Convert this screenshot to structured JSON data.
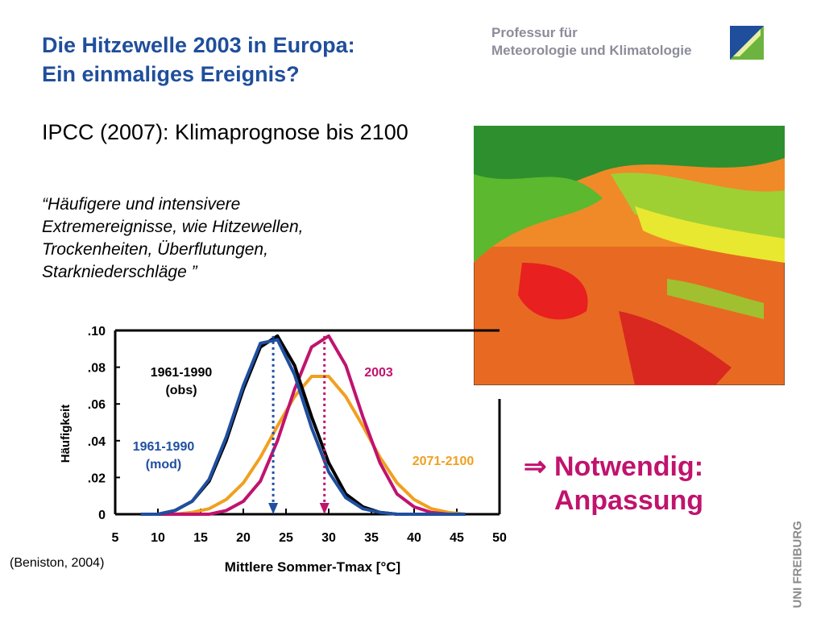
{
  "header": {
    "title_lines": [
      "Die Hitzewelle 2003 in Europa:",
      "Ein einmaliges Ereignis?"
    ],
    "institute_lines": [
      "Professur für",
      "Meteorologie und Klimatologie"
    ]
  },
  "heading": "IPCC (2007): Klimaprognose bis 2100",
  "quote_lines": [
    "“Häufigere und intensivere",
    "Extremereignisse, wie Hitzewellen,",
    "Trockenheiten, Überflutungen,",
    "Starkniederschläge ”"
  ],
  "conclusion": {
    "arrow": "⇒",
    "text": "Notwendig: Anpassung"
  },
  "source": "(Beniston, 2004)",
  "logo": "UNI FREIBURG",
  "chart_data": {
    "type": "line",
    "xlabel": "Mittlere Sommer-Tmax [°C]",
    "ylabel": "Häufigkeit",
    "x": [
      8,
      10,
      12,
      14,
      16,
      18,
      20,
      22,
      24,
      26,
      28,
      30,
      32,
      34,
      36,
      38,
      40,
      42,
      44,
      46
    ],
    "series": [
      {
        "name": "1961-1990 (obs)",
        "color": "#000000",
        "values": [
          0,
          0,
          0.002,
          0.007,
          0.018,
          0.04,
          0.068,
          0.091,
          0.097,
          0.081,
          0.053,
          0.028,
          0.011,
          0.004,
          0.001,
          0,
          0,
          0,
          0,
          0
        ]
      },
      {
        "name": "1961-1990 (mod)",
        "color": "#1f4fa0",
        "values": [
          0,
          0,
          0.002,
          0.007,
          0.019,
          0.042,
          0.07,
          0.093,
          0.095,
          0.076,
          0.047,
          0.023,
          0.009,
          0.003,
          0.001,
          0,
          0,
          0,
          0,
          0
        ]
      },
      {
        "name": "2003",
        "color": "#c0136e",
        "values": [
          0,
          0,
          0,
          0,
          0,
          0.002,
          0.007,
          0.018,
          0.04,
          0.068,
          0.091,
          0.097,
          0.081,
          0.053,
          0.028,
          0.011,
          0.004,
          0.001,
          0,
          0
        ]
      },
      {
        "name": "2071-2100",
        "color": "#f0a020",
        "values": [
          0,
          0,
          0,
          0.001,
          0.003,
          0.008,
          0.017,
          0.031,
          0.048,
          0.064,
          0.075,
          0.075,
          0.064,
          0.048,
          0.031,
          0.017,
          0.008,
          0.003,
          0.001,
          0
        ]
      }
    ],
    "mean_lines": [
      {
        "x": 23.5,
        "top": 0.097,
        "color": "#1f4fa0"
      },
      {
        "x": 29.5,
        "top": 0.097,
        "color": "#c0136e"
      }
    ],
    "xlim": [
      5,
      50
    ],
    "xticks": [
      5,
      10,
      15,
      20,
      25,
      30,
      35,
      40,
      45,
      50
    ],
    "ylim": [
      0,
      0.1
    ],
    "yticks": [
      0,
      {
        "value": 0.02,
        "label": ".02"
      },
      {
        "value": 0.04,
        "label": ".04"
      },
      {
        "value": 0.06,
        "label": ".06"
      },
      {
        "value": 0.08,
        "label": ".08"
      },
      {
        "value": 0.1,
        "label": ".10"
      }
    ]
  }
}
